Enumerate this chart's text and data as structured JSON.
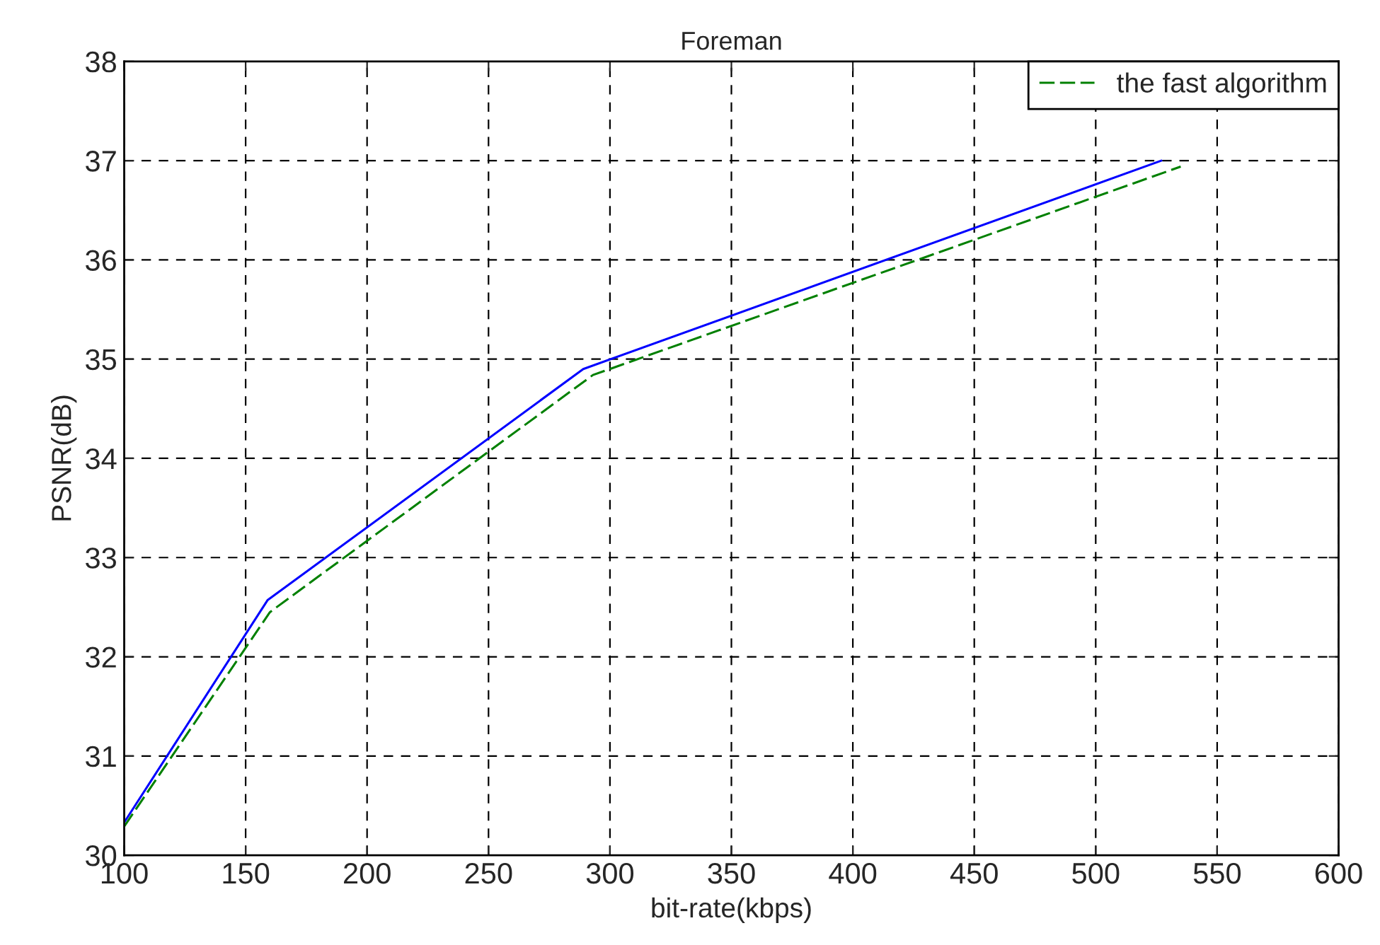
{
  "chart_data": {
    "type": "line",
    "title": "Foreman",
    "xlabel": "bit-rate(kbps)",
    "ylabel": "PSNR(dB)",
    "xlim": [
      100,
      600
    ],
    "xticks": [
      100,
      150,
      200,
      250,
      300,
      350,
      400,
      450,
      500,
      550,
      600
    ],
    "ylim": [
      30,
      38
    ],
    "yticks": [
      30,
      31,
      32,
      33,
      34,
      35,
      36,
      37,
      38
    ],
    "grid": true,
    "legend": "top right",
    "series": [
      {
        "color": "#0000ff",
        "line_style": "solid",
        "x": [
          100,
          159,
          289,
          527
        ],
        "values": [
          30.33,
          32.57,
          34.9,
          37.0
        ]
      },
      {
        "name": "the fast algorithm",
        "color": "#008000",
        "line_style": "dashed",
        "x": [
          100,
          160,
          293,
          535
        ],
        "values": [
          30.29,
          32.45,
          34.84,
          36.94
        ]
      }
    ]
  }
}
